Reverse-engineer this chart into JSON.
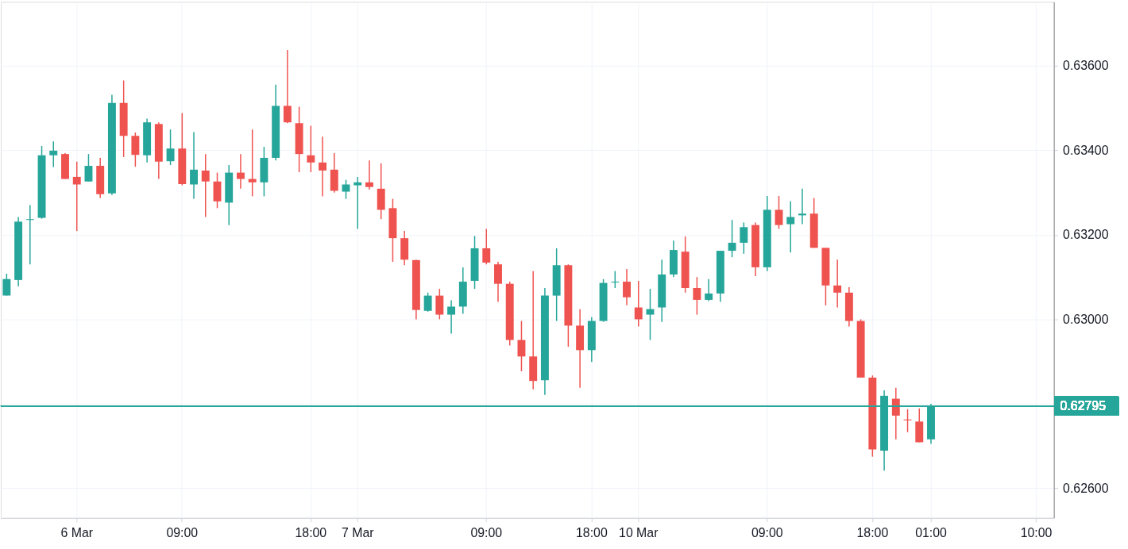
{
  "chart_data": {
    "type": "candlestick",
    "categories": [
      null,
      null,
      null,
      null,
      null,
      null,
      "6 Mar",
      null,
      null,
      null,
      null,
      null,
      null,
      null,
      null,
      "09:00",
      null,
      null,
      null,
      null,
      null,
      null,
      null,
      null,
      null,
      null,
      "18:00",
      null,
      null,
      null,
      "7 Mar",
      null,
      null,
      null,
      null,
      null,
      null,
      null,
      null,
      null,
      null,
      "09:00",
      null,
      null,
      null,
      null,
      null,
      null,
      null,
      null,
      "18:00",
      null,
      null,
      null,
      "10 Mar",
      null,
      null,
      null,
      null,
      null,
      null,
      null,
      null,
      null,
      null,
      "09:00",
      null,
      null,
      null,
      null,
      null,
      null,
      null,
      null,
      "18:00",
      null,
      null,
      null,
      null,
      "01:00",
      null,
      null,
      null,
      null,
      null,
      null,
      null,
      null,
      "10:00",
      null
    ],
    "ohlc": [
      [
        0.63056,
        0.63108,
        0.63056,
        0.63095
      ],
      [
        0.63093,
        0.63242,
        0.63078,
        0.63231
      ],
      [
        0.63235,
        0.6327,
        0.6313,
        0.63237
      ],
      [
        0.6324,
        0.6341,
        0.63238,
        0.63388
      ],
      [
        0.63388,
        0.63421,
        0.6336,
        0.63399
      ],
      [
        0.63391,
        0.63393,
        0.63332,
        0.63332
      ],
      [
        0.63337,
        0.63373,
        0.63209,
        0.63319
      ],
      [
        0.63326,
        0.63391,
        0.63326,
        0.63363
      ],
      [
        0.63363,
        0.63382,
        0.63287,
        0.63296
      ],
      [
        0.63298,
        0.63531,
        0.63294,
        0.63512
      ],
      [
        0.63512,
        0.63565,
        0.63384,
        0.63434
      ],
      [
        0.63434,
        0.63442,
        0.63361,
        0.63389
      ],
      [
        0.63388,
        0.63475,
        0.63371,
        0.63466
      ],
      [
        0.63462,
        0.63466,
        0.63332,
        0.63373
      ],
      [
        0.63374,
        0.63449,
        0.63365,
        0.63404
      ],
      [
        0.63404,
        0.63488,
        0.63317,
        0.6332
      ],
      [
        0.63319,
        0.63443,
        0.63285,
        0.63354
      ],
      [
        0.63352,
        0.63391,
        0.63242,
        0.63326
      ],
      [
        0.63326,
        0.63347,
        0.63263,
        0.63279
      ],
      [
        0.63276,
        0.63365,
        0.63223,
        0.63347
      ],
      [
        0.63347,
        0.63391,
        0.63309,
        0.63332
      ],
      [
        0.63332,
        0.63449,
        0.63291,
        0.63324
      ],
      [
        0.63324,
        0.63408,
        0.63291,
        0.63382
      ],
      [
        0.63382,
        0.63555,
        0.63376,
        0.63505
      ],
      [
        0.63505,
        0.63637,
        0.63464,
        0.63466
      ],
      [
        0.63464,
        0.63503,
        0.63348,
        0.63391
      ],
      [
        0.63388,
        0.63458,
        0.63348,
        0.63371
      ],
      [
        0.63371,
        0.63432,
        0.63291,
        0.63352
      ],
      [
        0.63354,
        0.63393,
        0.633,
        0.63304
      ],
      [
        0.63302,
        0.6333,
        0.63285,
        0.63319
      ],
      [
        0.63317,
        0.63337,
        0.63214,
        0.63324
      ],
      [
        0.63324,
        0.63376,
        0.63307,
        0.63313
      ],
      [
        0.63309,
        0.63369,
        0.63237,
        0.63259
      ],
      [
        0.63263,
        0.63285,
        0.63136,
        0.63192
      ],
      [
        0.63192,
        0.63209,
        0.63128,
        0.63141
      ],
      [
        0.6314,
        0.63141,
        0.63,
        0.63022
      ],
      [
        0.6302,
        0.63063,
        0.63018,
        0.63056
      ],
      [
        0.63056,
        0.63072,
        0.63,
        0.63011
      ],
      [
        0.63011,
        0.63045,
        0.62966,
        0.6303
      ],
      [
        0.6303,
        0.63123,
        0.63013,
        0.63089
      ],
      [
        0.63091,
        0.63197,
        0.63072,
        0.63168
      ],
      [
        0.63168,
        0.63214,
        0.6313,
        0.63134
      ],
      [
        0.6313,
        0.63136,
        0.63041,
        0.63084
      ],
      [
        0.63084,
        0.63089,
        0.62938,
        0.62951
      ],
      [
        0.62951,
        0.62996,
        0.62877,
        0.62912
      ],
      [
        0.62912,
        0.63114,
        0.62834,
        0.62854
      ],
      [
        0.62856,
        0.63074,
        0.62821,
        0.63056
      ],
      [
        0.63056,
        0.63168,
        0.62996,
        0.63128
      ],
      [
        0.63128,
        0.6313,
        0.62935,
        0.62985
      ],
      [
        0.62985,
        0.63024,
        0.62838,
        0.62927
      ],
      [
        0.62927,
        0.63005,
        0.62899,
        0.62996
      ],
      [
        0.62996,
        0.63095,
        0.62994,
        0.63086
      ],
      [
        0.63087,
        0.63114,
        0.63074,
        0.63089
      ],
      [
        0.63089,
        0.63119,
        0.63033,
        0.63052
      ],
      [
        0.63028,
        0.63091,
        0.62983,
        0.63
      ],
      [
        0.63011,
        0.63072,
        0.62951,
        0.63024
      ],
      [
        0.63028,
        0.63141,
        0.62994,
        0.63106
      ],
      [
        0.63106,
        0.63186,
        0.631,
        0.63164
      ],
      [
        0.6316,
        0.63196,
        0.63063,
        0.63074
      ],
      [
        0.63074,
        0.631,
        0.63011,
        0.63046
      ],
      [
        0.63046,
        0.63095,
        0.63043,
        0.63061
      ],
      [
        0.63061,
        0.63162,
        0.63041,
        0.63162
      ],
      [
        0.63162,
        0.63235,
        0.63147,
        0.63181
      ],
      [
        0.63181,
        0.63229,
        0.63155,
        0.63218
      ],
      [
        0.63223,
        0.63229,
        0.63102,
        0.63123
      ],
      [
        0.63123,
        0.63292,
        0.63114,
        0.63259
      ],
      [
        0.63259,
        0.63292,
        0.63214,
        0.63223
      ],
      [
        0.63225,
        0.63279,
        0.63158,
        0.63242
      ],
      [
        0.63246,
        0.63309,
        0.63225,
        0.6325
      ],
      [
        0.6325,
        0.63287,
        0.63169,
        0.63169
      ],
      [
        0.63169,
        0.63169,
        0.63033,
        0.6308
      ],
      [
        0.6308,
        0.63141,
        0.63028,
        0.63063
      ],
      [
        0.63063,
        0.63076,
        0.62983,
        0.62996
      ],
      [
        0.62996,
        0.63,
        0.62862,
        0.62862
      ],
      [
        0.62862,
        0.62867,
        0.62675,
        0.62692
      ],
      [
        0.62689,
        0.62832,
        0.62642,
        0.62819
      ],
      [
        0.62812,
        0.62838,
        0.62716,
        0.62772
      ],
      [
        0.62763,
        0.62787,
        0.62733,
        0.62761
      ],
      [
        0.62758,
        0.62789,
        0.62709,
        0.62709
      ],
      [
        0.62716,
        0.628,
        0.62705,
        0.62795
      ],
      null,
      null,
      null,
      null,
      null,
      null,
      null,
      null,
      null,
      null
    ],
    "colors": [
      "#26a69a",
      "#26a69a",
      "#26a69a",
      "#26a69a",
      "#26a69a",
      "#ef5350",
      "#ef5350",
      "#26a69a",
      "#ef5350",
      "#26a69a",
      "#ef5350",
      "#ef5350",
      "#26a69a",
      "#ef5350",
      "#26a69a",
      "#ef5350",
      "#26a69a",
      "#ef5350",
      "#ef5350",
      "#26a69a",
      "#ef5350",
      "#ef5350",
      "#26a69a",
      "#26a69a",
      "#ef5350",
      "#ef5350",
      "#ef5350",
      "#ef5350",
      "#ef5350",
      "#26a69a",
      "#26a69a",
      "#ef5350",
      "#ef5350",
      "#ef5350",
      "#ef5350",
      "#ef5350",
      "#26a69a",
      "#ef5350",
      "#26a69a",
      "#26a69a",
      "#26a69a",
      "#ef5350",
      "#ef5350",
      "#ef5350",
      "#ef5350",
      "#ef5350",
      "#26a69a",
      "#26a69a",
      "#ef5350",
      "#ef5350",
      "#26a69a",
      "#26a69a",
      "#26a69a",
      "#ef5350",
      "#ef5350",
      "#26a69a",
      "#26a69a",
      "#26a69a",
      "#ef5350",
      "#ef5350",
      "#26a69a",
      "#26a69a",
      "#26a69a",
      "#26a69a",
      "#ef5350",
      "#26a69a",
      "#ef5350",
      "#26a69a",
      "#26a69a",
      "#ef5350",
      "#ef5350",
      "#ef5350",
      "#ef5350",
      "#ef5350",
      "#ef5350",
      "#26a69a",
      "#ef5350",
      "#ef5350",
      "#ef5350",
      "#26a69a",
      null,
      null,
      null,
      null,
      null,
      null,
      null,
      null,
      null,
      null
    ],
    "ylim": [
      0.6253,
      0.63751
    ],
    "yticks": [
      {
        "value": 0.626,
        "label": "0.62600"
      },
      {
        "value": 0.628,
        "label": null
      },
      {
        "value": 0.63,
        "label": "0.63000"
      },
      {
        "value": 0.632,
        "label": "0.63200"
      },
      {
        "value": 0.634,
        "label": "0.63400"
      },
      {
        "value": 0.636,
        "label": "0.63600"
      }
    ],
    "grid": true,
    "ref_lines": [
      {
        "axis": "y",
        "value": 0.62795,
        "label": "0.62795",
        "color": "#26a69a"
      }
    ]
  }
}
